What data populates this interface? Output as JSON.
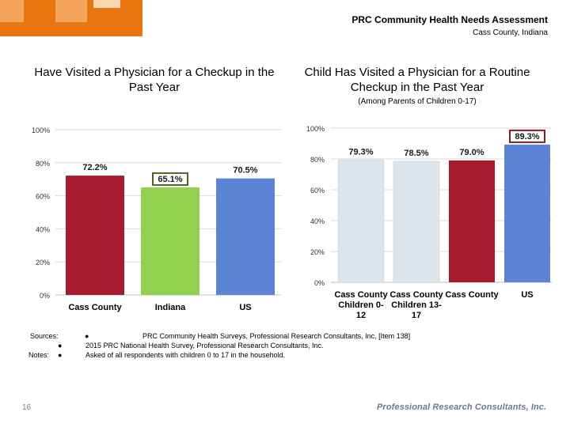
{
  "header": {
    "title": "PRC Community Health Needs Assessment",
    "subtitle": "Cass County, Indiana"
  },
  "chart_data": [
    {
      "type": "bar",
      "title": "Have Visited a Physician for a Checkup in the Past Year",
      "categories": [
        "Cass County",
        "Indiana",
        "US"
      ],
      "values": [
        72.2,
        65.1,
        70.5
      ],
      "value_labels": [
        "72.2%",
        "65.1%",
        "70.5%"
      ],
      "colors": [
        "#a51c30",
        "#92d050",
        "#5b84d6"
      ],
      "highlight_index": 1,
      "ylim": [
        0,
        100
      ],
      "yticks": [
        0,
        20,
        40,
        60,
        80,
        100
      ],
      "ytick_labels": [
        "0%",
        "20%",
        "40%",
        "60%",
        "80%",
        "100%"
      ],
      "xlabel": "",
      "ylabel": ""
    },
    {
      "type": "bar",
      "title": "Child Has Visited a Physician for a Routine Checkup in the Past Year",
      "note": "(Among Parents of Children 0-17)",
      "categories": [
        "Cass County Children 0-12",
        "Cass County Children 13-17",
        "Cass County",
        "US"
      ],
      "category_lines": [
        [
          "Cass County",
          "Children 0-",
          "12"
        ],
        [
          "Cass County",
          "Children 13-",
          "17"
        ],
        [
          "Cass County"
        ],
        [
          "US"
        ]
      ],
      "values": [
        79.3,
        78.5,
        79.0,
        89.3
      ],
      "value_labels": [
        "79.3%",
        "78.5%",
        "79.0%",
        "89.3%"
      ],
      "colors": [
        "#dce6ec",
        "#dce6ec",
        "#a51c30",
        "#5b84d6"
      ],
      "highlight_index": 3,
      "ylim": [
        0,
        100
      ],
      "yticks": [
        0,
        20,
        40,
        60,
        80,
        100
      ],
      "ytick_labels": [
        "0%",
        "20%",
        "40%",
        "60%",
        "80%",
        "100%"
      ],
      "xlabel": "",
      "ylabel": ""
    }
  ],
  "footer": {
    "sources_label": "Sources:",
    "notes_label": "Notes:",
    "bullet": "●",
    "lines": [
      "PRC Community Health Surveys, Professional Research Consultants, Inc. [Item 138]",
      "2015 PRC National Health Survey, Professional Research Consultants, Inc.",
      "Asked of all respondents with children 0 to 17 in the household."
    ],
    "page_number": "16",
    "brand": "Professional Research Consultants, Inc."
  }
}
